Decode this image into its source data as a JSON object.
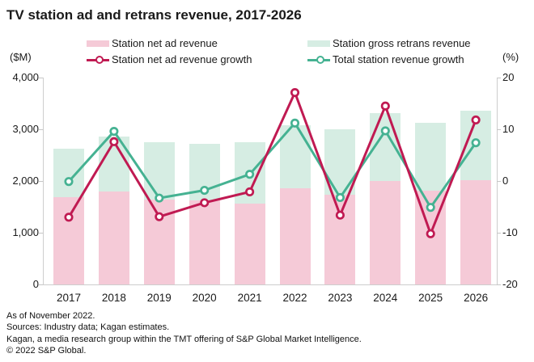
{
  "title": "TV station ad and retrans revenue, 2017-2026",
  "footer_lines": [
    "As of November 2022.",
    "Sources: Industry data; Kagan estimates.",
    "Kagan, a media research group within the TMT offering of S&P Global Market Intelligence.",
    "© 2022 S&P Global."
  ],
  "chart_data": {
    "type": "bar",
    "combo": "stacked-bar-with-lines",
    "title": "TV station ad and retrans revenue, 2017-2026",
    "categories": [
      "2017",
      "2018",
      "2019",
      "2020",
      "2021",
      "2022",
      "2023",
      "2024",
      "2025",
      "2026"
    ],
    "series": [
      {
        "name": "Station net ad revenue",
        "kind": "bar-stack-bottom",
        "axis": "left",
        "color": "#F5CAD7",
        "values": [
          1680,
          1800,
          1640,
          1620,
          1570,
          1855,
          1735,
          2005,
          1805,
          2015
        ]
      },
      {
        "name": "Station gross retrans revenue",
        "kind": "bar-stack-top",
        "axis": "left",
        "color": "#D6EDE3",
        "values": [
          940,
          1060,
          1110,
          1105,
          1185,
          1230,
          1265,
          1305,
          1325,
          1350
        ]
      },
      {
        "name": "Station net ad revenue growth",
        "kind": "line",
        "axis": "right",
        "color": "#C01A52",
        "values": [
          -7.0,
          7.6,
          -6.9,
          -4.2,
          -2.1,
          17.1,
          -6.6,
          14.5,
          -10.2,
          11.8
        ]
      },
      {
        "name": "Total station revenue growth",
        "kind": "line",
        "axis": "right",
        "color": "#45B292",
        "values": [
          -0.1,
          9.6,
          -3.3,
          -1.8,
          1.3,
          11.2,
          -3.2,
          9.7,
          -5.1,
          7.4
        ]
      }
    ],
    "left_axis": {
      "unit": "($M)",
      "min": 0,
      "max": 4000,
      "tick_labels": [
        "4,000",
        "3,000",
        "2,000",
        "1,000",
        "0"
      ]
    },
    "right_axis": {
      "unit": "(%)",
      "min": -20,
      "max": 20,
      "tick_labels": [
        "20",
        "10",
        "0",
        "-10",
        "-20"
      ]
    },
    "grid": false,
    "legend_position": "top"
  }
}
